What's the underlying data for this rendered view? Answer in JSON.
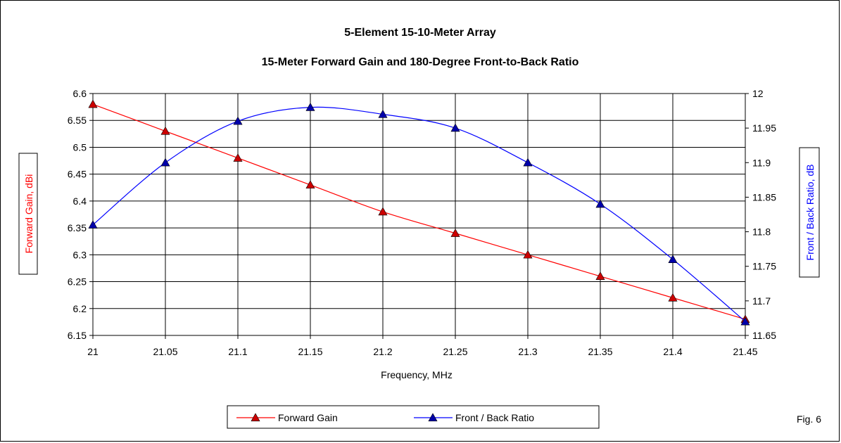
{
  "chart_data": {
    "type": "line",
    "title": "5-Element 15-10-Meter Array",
    "subtitle": "15-Meter Forward Gain and 180-Degree Front-to-Back Ratio",
    "xlabel": "Frequency, MHz",
    "ylabel_left": "Forward Gain, dBi",
    "ylabel_right": "Front / Back Ratio, dB",
    "x": [
      21,
      21.05,
      21.1,
      21.15,
      21.2,
      21.25,
      21.3,
      21.35,
      21.4,
      21.45
    ],
    "x_tick_labels": [
      "21",
      "21.05",
      "21.1",
      "21.15",
      "21.2",
      "21.25",
      "21.3",
      "21.35",
      "21.4",
      "21.45"
    ],
    "ylim_left": [
      6.15,
      6.6
    ],
    "y_tick_labels_left": [
      "6.15",
      "6.2",
      "6.25",
      "6.3",
      "6.35",
      "6.4",
      "6.45",
      "6.5",
      "6.55",
      "6.6"
    ],
    "ylim_right": [
      11.65,
      12
    ],
    "y_tick_labels_right": [
      "11.65",
      "11.7",
      "11.75",
      "11.8",
      "11.85",
      "11.9",
      "11.95",
      "12"
    ],
    "grid": true,
    "legend_position": "bottom",
    "series": [
      {
        "name": "Forward Gain",
        "axis": "left",
        "color": "#ff0000",
        "marker_color": "#cc0000",
        "values": [
          6.58,
          6.53,
          6.48,
          6.43,
          6.38,
          6.34,
          6.3,
          6.26,
          6.22,
          6.18
        ]
      },
      {
        "name": "Front / Back Ratio",
        "axis": "right",
        "color": "#0000ff",
        "marker_color": "#0000aa",
        "values": [
          11.81,
          11.9,
          11.96,
          11.98,
          11.97,
          11.95,
          11.9,
          11.84,
          11.76,
          11.67
        ]
      }
    ],
    "annotation": "Fig. 6"
  }
}
